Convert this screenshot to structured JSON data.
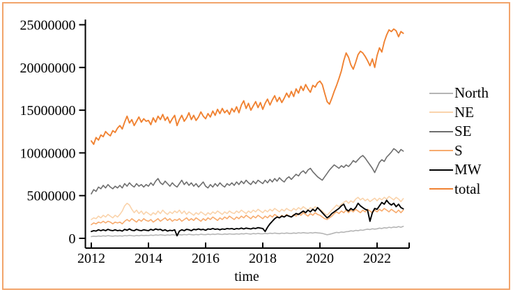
{
  "figure": {
    "background_color": "#ffffff",
    "frame_border_color": "#f2a46b",
    "axis_color": "#000000"
  },
  "legend": {
    "position": "right",
    "items": [
      {
        "label": "North",
        "color": "#b5b5b5"
      },
      {
        "label": "NE",
        "color": "#fad3ab"
      },
      {
        "label": "SE",
        "color": "#6e6e6e"
      },
      {
        "label": "S",
        "color": "#f7ab6e"
      },
      {
        "label": "MW",
        "color": "#000000"
      },
      {
        "label": "total",
        "color": "#f08232"
      }
    ]
  },
  "chart_data": {
    "type": "line",
    "title": "",
    "xlabel": "time",
    "ylabel": "",
    "x_start_year": 2012,
    "x_step_months": 1,
    "xlim": [
      2011.8,
      2023.1
    ],
    "ylim": [
      0,
      25000000
    ],
    "grid": false,
    "legend_position": "right-outside",
    "x_tick_labels": [
      "2012",
      "2014",
      "2016",
      "2018",
      "2020",
      "2022"
    ],
    "y_tick_labels": [
      "0",
      "5000000",
      "10000000",
      "15000000",
      "20000000",
      "25000000"
    ],
    "value_scale": 1000000,
    "value_unit": "persons (raw counts, stored here in millions)",
    "series": [
      {
        "name": "North",
        "color": "#b5b5b5",
        "values_millions": [
          0.2,
          0.25,
          0.22,
          0.28,
          0.24,
          0.3,
          0.26,
          0.32,
          0.28,
          0.25,
          0.3,
          0.27,
          0.3,
          0.26,
          0.33,
          0.29,
          0.35,
          0.31,
          0.28,
          0.34,
          0.3,
          0.36,
          0.32,
          0.35,
          0.33,
          0.38,
          0.34,
          0.4,
          0.36,
          0.42,
          0.38,
          0.35,
          0.41,
          0.37,
          0.43,
          0.39,
          0.38,
          0.43,
          0.39,
          0.45,
          0.41,
          0.47,
          0.43,
          0.4,
          0.46,
          0.42,
          0.48,
          0.44,
          0.43,
          0.48,
          0.44,
          0.5,
          0.46,
          0.52,
          0.48,
          0.45,
          0.51,
          0.47,
          0.53,
          0.49,
          0.48,
          0.53,
          0.49,
          0.55,
          0.51,
          0.57,
          0.53,
          0.5,
          0.56,
          0.52,
          0.58,
          0.54,
          0.53,
          0.58,
          0.54,
          0.6,
          0.56,
          0.62,
          0.58,
          0.55,
          0.61,
          0.57,
          0.63,
          0.59,
          0.58,
          0.63,
          0.59,
          0.65,
          0.61,
          0.67,
          0.63,
          0.6,
          0.66,
          0.62,
          0.68,
          0.64,
          0.62,
          0.58,
          0.5,
          0.42,
          0.47,
          0.55,
          0.63,
          0.7,
          0.66,
          0.74,
          0.7,
          0.78,
          0.8,
          0.88,
          0.84,
          0.93,
          0.89,
          0.98,
          0.94,
          1.02,
          1.08,
          1.03,
          1.12,
          1.08,
          1.12,
          1.2,
          1.15,
          1.25,
          1.2,
          1.3,
          1.24,
          1.33,
          1.27,
          1.38,
          1.3,
          1.4
        ]
      },
      {
        "name": "NE",
        "color": "#fad3ab",
        "values_millions": [
          2.2,
          2.4,
          2.3,
          2.6,
          2.4,
          2.7,
          2.5,
          2.8,
          2.6,
          2.4,
          2.7,
          2.5,
          2.8,
          3.2,
          3.8,
          4.1,
          3.9,
          3.4,
          3.0,
          3.3,
          2.9,
          3.2,
          2.8,
          3.1,
          2.9,
          2.7,
          3.0,
          2.8,
          3.2,
          2.9,
          3.3,
          3.0,
          2.8,
          3.1,
          2.9,
          3.2,
          3.0,
          3.3,
          2.9,
          3.2,
          2.8,
          3.1,
          2.9,
          2.7,
          3.0,
          2.8,
          3.1,
          2.9,
          2.7,
          3.0,
          2.8,
          3.1,
          2.9,
          3.2,
          3.0,
          2.8,
          3.1,
          2.9,
          3.2,
          3.0,
          2.9,
          3.2,
          3.0,
          3.3,
          3.1,
          2.9,
          3.2,
          3.0,
          3.3,
          3.1,
          3.4,
          3.2,
          3.0,
          3.3,
          3.1,
          3.4,
          3.2,
          3.5,
          3.3,
          3.1,
          3.4,
          3.2,
          3.5,
          3.3,
          3.2,
          3.5,
          3.3,
          3.6,
          3.4,
          3.7,
          3.5,
          3.3,
          3.6,
          3.4,
          3.7,
          3.5,
          3.4,
          3.2,
          2.9,
          2.7,
          3.0,
          3.3,
          3.6,
          3.9,
          3.7,
          4.0,
          4.2,
          4.4,
          4.1,
          4.4,
          4.2,
          4.6,
          4.8,
          4.5,
          4.7,
          4.4,
          4.6,
          4.3,
          4.5,
          4.7,
          4.4,
          4.7,
          4.5,
          4.8,
          4.6,
          4.9,
          4.7,
          4.5,
          4.8,
          4.6,
          4.3,
          4.65
        ]
      },
      {
        "name": "SE",
        "color": "#6e6e6e",
        "values_millions": [
          5.2,
          5.7,
          5.5,
          6.0,
          5.8,
          6.2,
          5.9,
          6.3,
          6.0,
          5.8,
          6.1,
          5.9,
          6.2,
          5.9,
          6.4,
          6.1,
          6.5,
          6.2,
          6.0,
          6.4,
          6.1,
          6.3,
          6.0,
          6.3,
          6.1,
          6.5,
          6.2,
          6.7,
          7.0,
          6.5,
          6.3,
          6.7,
          6.4,
          6.1,
          6.5,
          6.2,
          6.0,
          6.4,
          6.8,
          6.3,
          6.6,
          6.2,
          6.5,
          6.1,
          6.4,
          6.0,
          6.3,
          6.6,
          6.1,
          5.9,
          6.3,
          6.0,
          6.4,
          6.1,
          6.5,
          6.2,
          6.0,
          6.4,
          6.2,
          6.5,
          6.2,
          6.6,
          6.3,
          6.7,
          6.4,
          6.8,
          6.5,
          6.3,
          6.7,
          6.4,
          6.8,
          6.6,
          6.4,
          6.8,
          6.5,
          6.9,
          6.6,
          7.0,
          6.7,
          7.1,
          6.8,
          6.6,
          7.0,
          7.2,
          6.9,
          7.2,
          7.5,
          7.3,
          7.7,
          7.9,
          7.6,
          8.0,
          8.2,
          7.8,
          7.5,
          7.2,
          7.0,
          6.8,
          7.2,
          7.6,
          8.0,
          8.3,
          8.6,
          8.4,
          8.2,
          8.5,
          8.3,
          8.6,
          8.4,
          8.7,
          9.1,
          8.9,
          9.2,
          9.5,
          9.7,
          9.4,
          9.0,
          8.6,
          8.2,
          7.7,
          8.3,
          8.9,
          9.2,
          9.0,
          9.5,
          9.8,
          10.1,
          10.5,
          10.3,
          10.0,
          10.4,
          10.2
        ]
      },
      {
        "name": "S",
        "color": "#f7ab6e",
        "values_millions": [
          1.6,
          1.8,
          1.7,
          1.9,
          1.8,
          2.0,
          1.8,
          2.0,
          1.9,
          1.7,
          1.9,
          1.8,
          1.9,
          1.7,
          2.0,
          2.2,
          2.0,
          2.3,
          2.1,
          1.9,
          2.2,
          2.0,
          2.3,
          2.1,
          2.0,
          2.2,
          1.9,
          2.1,
          2.3,
          2.0,
          2.2,
          2.4,
          2.1,
          2.3,
          2.0,
          2.2,
          2.1,
          2.3,
          2.0,
          2.2,
          2.4,
          2.1,
          2.3,
          2.1,
          2.4,
          2.2,
          2.0,
          2.3,
          2.1,
          2.4,
          2.2,
          2.5,
          2.3,
          2.1,
          2.4,
          2.2,
          2.5,
          2.3,
          2.6,
          2.4,
          2.2,
          2.5,
          2.3,
          2.6,
          2.4,
          2.7,
          2.5,
          2.3,
          2.6,
          2.4,
          2.7,
          2.5,
          2.3,
          2.6,
          2.4,
          2.7,
          2.5,
          2.8,
          2.6,
          2.4,
          2.7,
          2.5,
          2.8,
          2.6,
          2.5,
          2.8,
          2.6,
          2.9,
          2.7,
          3.0,
          2.8,
          2.6,
          2.9,
          2.7,
          3.0,
          2.8,
          2.7,
          2.5,
          2.3,
          2.2,
          2.4,
          2.6,
          2.9,
          3.1,
          2.9,
          3.2,
          3.0,
          3.3,
          3.0,
          3.3,
          3.1,
          3.4,
          3.2,
          3.0,
          3.3,
          3.1,
          3.4,
          3.2,
          3.0,
          3.3,
          3.1,
          3.4,
          3.2,
          3.5,
          3.3,
          3.1,
          3.4,
          3.2,
          3.0,
          3.3,
          3.0,
          3.3
        ]
      },
      {
        "name": "MW",
        "color": "#000000",
        "values_millions": [
          0.8,
          0.9,
          0.85,
          1.0,
          0.9,
          1.0,
          0.9,
          1.05,
          0.95,
          0.9,
          1.0,
          0.9,
          0.95,
          0.85,
          1.05,
          0.95,
          1.1,
          0.95,
          0.9,
          1.05,
          0.95,
          0.9,
          1.0,
          0.95,
          0.9,
          1.05,
          0.95,
          1.1,
          1.0,
          1.05,
          0.9,
          1.0,
          0.85,
          0.95,
          0.9,
          1.0,
          0.3,
          0.85,
          1.0,
          0.9,
          1.05,
          1.0,
          0.9,
          1.05,
          1.0,
          1.1,
          1.0,
          1.05,
          0.95,
          1.1,
          1.05,
          1.15,
          1.05,
          1.1,
          1.0,
          1.1,
          1.05,
          1.15,
          1.1,
          1.15,
          1.05,
          1.15,
          1.1,
          1.2,
          1.1,
          1.2,
          1.15,
          1.1,
          1.2,
          1.15,
          1.25,
          1.2,
          1.15,
          0.8,
          1.3,
          1.7,
          2.0,
          2.3,
          2.5,
          2.4,
          2.6,
          2.5,
          2.7,
          2.6,
          2.5,
          2.7,
          2.9,
          2.8,
          3.0,
          3.2,
          3.0,
          3.3,
          3.1,
          3.4,
          3.2,
          3.6,
          3.3,
          3.0,
          2.7,
          2.4,
          2.6,
          2.9,
          3.1,
          3.3,
          3.5,
          3.8,
          4.0,
          3.4,
          3.2,
          3.5,
          3.3,
          3.6,
          4.1,
          3.8,
          3.6,
          3.4,
          3.3,
          2.0,
          3.0,
          3.5,
          3.4,
          3.8,
          4.2,
          4.0,
          4.45,
          4.1,
          3.9,
          4.1,
          3.7,
          4.0,
          3.6,
          3.45
        ]
      },
      {
        "name": "total",
        "color": "#f08232",
        "values_millions": [
          11.4,
          11.0,
          11.8,
          11.5,
          12.1,
          11.9,
          12.5,
          12.2,
          12.0,
          12.6,
          12.4,
          12.9,
          13.2,
          12.8,
          13.6,
          14.3,
          13.5,
          13.9,
          13.2,
          13.7,
          14.2,
          13.6,
          14.0,
          13.7,
          13.8,
          13.3,
          14.1,
          13.6,
          14.3,
          13.9,
          14.5,
          13.8,
          14.2,
          13.5,
          14.0,
          14.4,
          13.2,
          13.9,
          14.4,
          13.7,
          14.1,
          14.7,
          13.9,
          14.4,
          13.8,
          14.2,
          14.8,
          14.3,
          14.0,
          14.6,
          14.2,
          14.9,
          14.4,
          15.1,
          14.6,
          15.2,
          14.7,
          15.0,
          14.5,
          15.2,
          14.8,
          15.4,
          14.7,
          15.6,
          16.1,
          15.2,
          15.8,
          15.0,
          15.5,
          16.0,
          15.3,
          15.9,
          15.1,
          15.8,
          16.3,
          15.6,
          16.2,
          16.7,
          16.0,
          16.5,
          15.9,
          16.4,
          17.0,
          16.5,
          17.2,
          16.6,
          17.5,
          17.0,
          17.8,
          17.3,
          18.0,
          17.5,
          17.1,
          17.9,
          17.7,
          18.2,
          18.4,
          18.0,
          17.0,
          16.0,
          15.7,
          16.4,
          17.2,
          17.9,
          18.7,
          19.6,
          20.8,
          21.7,
          21.2,
          20.3,
          19.8,
          20.6,
          21.5,
          21.9,
          21.7,
          21.3,
          20.8,
          20.2,
          21.0,
          20.0,
          21.4,
          22.3,
          21.8,
          23.0,
          23.8,
          24.4,
          24.2,
          24.5,
          24.3,
          23.6,
          24.2,
          24.0
        ]
      }
    ]
  }
}
